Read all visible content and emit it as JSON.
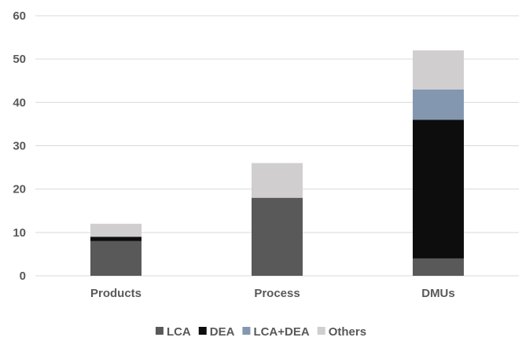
{
  "chart_data": {
    "type": "bar",
    "stacked": true,
    "categories": [
      "Products",
      "Process",
      "DMUs"
    ],
    "series": [
      {
        "name": "LCA",
        "color": "#595959",
        "values": [
          8,
          18,
          4
        ]
      },
      {
        "name": "DEA",
        "color": "#0d0d0d",
        "values": [
          1,
          0,
          32
        ]
      },
      {
        "name": "LCA+DEA",
        "color": "#8497b0",
        "values": [
          0,
          0,
          7
        ]
      },
      {
        "name": "Others",
        "color": "#d0cece",
        "values": [
          3,
          8,
          9
        ]
      }
    ],
    "yticks": [
      "0",
      "10",
      "20",
      "30",
      "40",
      "50",
      "60"
    ],
    "ylim": [
      0,
      60
    ],
    "grid": true,
    "legend_position": "bottom"
  }
}
